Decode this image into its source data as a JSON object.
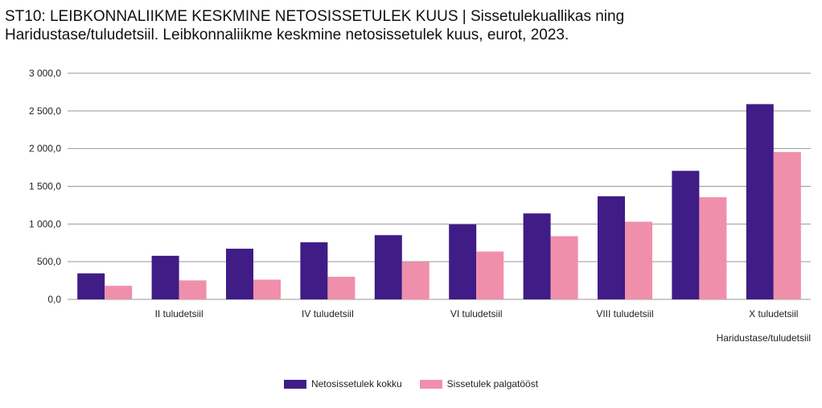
{
  "title": {
    "line1": "ST10: LEIBKONNALIIKME KESKMINE NETOSISSETULEK KUUS | Sissetulekuallikas ning",
    "line2": "Haridustase/tuludetsiil. Leibkonnaliikme keskmine netosissetulek kuus, eurot, 2023."
  },
  "colors": {
    "series1": "#3f1c86",
    "series2": "#f08fab",
    "grid": "#999999"
  },
  "chart_data": {
    "type": "bar",
    "title": "ST10: LEIBKONNALIIKME KESKMINE NETOSISSETULEK KUUS | Sissetulekuallikas ning Haridustase/tuludetsiil. Leibkonnaliikme keskmine netosissetulek kuus, eurot, 2023.",
    "xlabel": "Haridustase/tuludetsiil",
    "ylabel": "",
    "ylim": [
      0,
      3000
    ],
    "yticks": [
      0,
      500,
      1000,
      1500,
      2000,
      2500,
      3000
    ],
    "ytick_labels": [
      "0,0",
      "500,0",
      "1 000,0",
      "1 500,0",
      "2 000,0",
      "2 500,0",
      "3 000,0"
    ],
    "categories": [
      "",
      "II tuludetsiil",
      "",
      "IV tuludetsiil",
      "",
      "VI tuludetsiil",
      "",
      "VIII tuludetsiil",
      "",
      "X tuludetsiil"
    ],
    "series": [
      {
        "name": "Netosissetulek kokku",
        "values": [
          345,
          578,
          672,
          757,
          852,
          995,
          1140,
          1368,
          1705,
          2590
        ]
      },
      {
        "name": "Sissetulek palgatööst",
        "values": [
          180,
          252,
          262,
          300,
          497,
          635,
          838,
          1030,
          1355,
          1955
        ]
      }
    ],
    "grid": true,
    "legend_position": "bottom-center"
  }
}
